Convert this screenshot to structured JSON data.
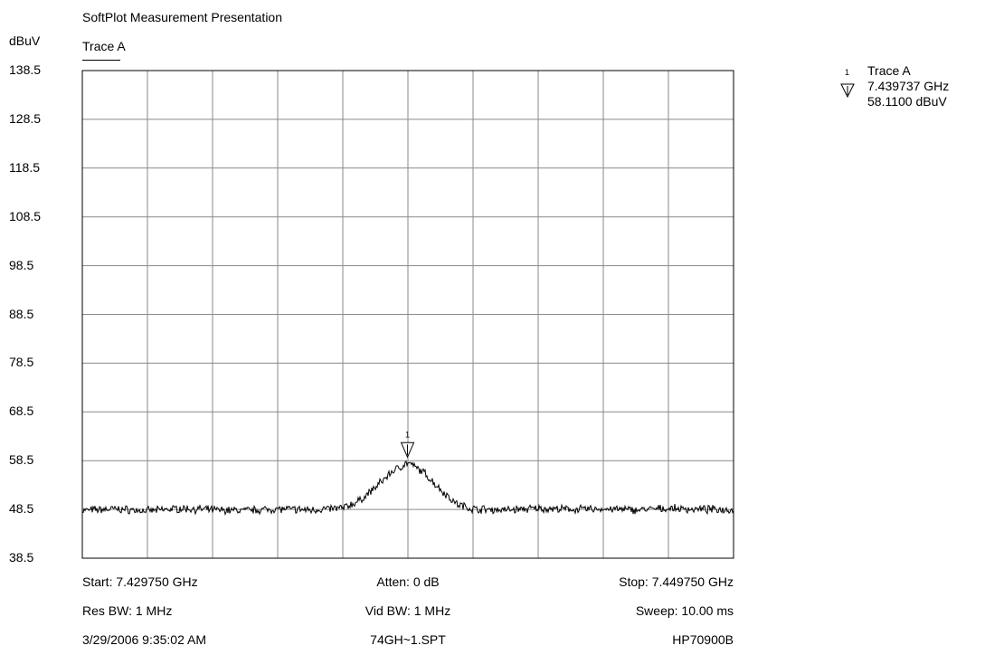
{
  "header": {
    "title": "SoftPlot Measurement Presentation",
    "unit": "dBuV",
    "trace_label": "Trace A"
  },
  "marker_info": {
    "number": "1",
    "trace": "Trace A",
    "frequency": "7.439737 GHz",
    "level": "58.1100 dBuV"
  },
  "footer": {
    "start": "Start: 7.429750 GHz",
    "atten": "Atten: 0 dB",
    "stop": "Stop: 7.449750 GHz",
    "res_bw": "Res BW: 1 MHz",
    "vid_bw": "Vid BW: 1 MHz",
    "sweep": "Sweep: 10.00 ms",
    "timestamp": "3/29/2006 9:35:02 AM",
    "filename": "74GH~1.SPT",
    "instrument": "HP70900B"
  },
  "chart_data": {
    "type": "line",
    "title": "SoftPlot Measurement Presentation",
    "ylabel": "dBuV",
    "xlim": [
      7.42975,
      7.44975
    ],
    "ylim": [
      38.5,
      138.5
    ],
    "ytick_labels": [
      "138.5",
      "128.5",
      "118.5",
      "108.5",
      "98.5",
      "88.5",
      "78.5",
      "68.5",
      "58.5",
      "48.5",
      "38.5"
    ],
    "grid": true,
    "line_color": "#000000",
    "series": [
      {
        "name": "Trace A",
        "x": [
          7.42975,
          7.43075,
          7.43175,
          7.43275,
          7.43375,
          7.43475,
          7.43575,
          7.43675,
          7.43775,
          7.43825,
          7.43875,
          7.43925,
          7.43974,
          7.44025,
          7.44075,
          7.44125,
          7.44175,
          7.44275,
          7.44375,
          7.44475,
          7.44575,
          7.44675,
          7.44775,
          7.44875,
          7.44975
        ],
        "values": [
          48.3,
          48.6,
          48.2,
          48.7,
          48.4,
          48.3,
          48.6,
          48.4,
          48.8,
          50.2,
          53.0,
          56.2,
          58.11,
          56.0,
          52.6,
          49.6,
          48.6,
          48.4,
          48.7,
          48.5,
          48.6,
          48.4,
          48.7,
          48.5,
          48.5
        ]
      }
    ],
    "marker": {
      "label": "1",
      "x": 7.439737,
      "y": 58.11
    }
  }
}
